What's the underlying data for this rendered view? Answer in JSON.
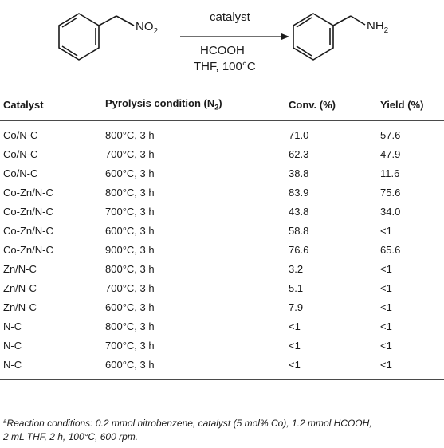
{
  "scheme": {
    "reactant_group": "NO",
    "reactant_group_sub": "2",
    "catalyst_label": "catalyst",
    "reagent_label": "HCOOH",
    "conditions_label": "THF, 100°C",
    "product_group": "NH",
    "product_group_sub": "2"
  },
  "table": {
    "headers": {
      "catalyst": "Catalyst",
      "pyrolysis": "Pyrolysis condition (N",
      "pyrolysis_sub": "2",
      "pyrolysis_close": ")",
      "conv": "Conv. (%)",
      "yield": "Yield (%)"
    },
    "rows": [
      {
        "catalyst": "Co/N-C",
        "condition": "800°C, 3 h",
        "conv": "71.0",
        "yield": "57.6"
      },
      {
        "catalyst": "Co/N-C",
        "condition": "700°C, 3 h",
        "conv": "62.3",
        "yield": "47.9"
      },
      {
        "catalyst": "Co/N-C",
        "condition": "600°C, 3 h",
        "conv": "38.8",
        "yield": "11.6"
      },
      {
        "catalyst": "Co-Zn/N-C",
        "condition": "800°C, 3 h",
        "conv": "83.9",
        "yield": "75.6"
      },
      {
        "catalyst": "Co-Zn/N-C",
        "condition": "700°C, 3 h",
        "conv": "43.8",
        "yield": "34.0"
      },
      {
        "catalyst": "Co-Zn/N-C",
        "condition": "600°C, 3 h",
        "conv": "58.8",
        "yield": "<1"
      },
      {
        "catalyst": "Co-Zn/N-C",
        "condition": "900°C, 3 h",
        "conv": "76.6",
        "yield": "65.6"
      },
      {
        "catalyst": "Zn/N-C",
        "condition": "800°C, 3 h",
        "conv": "3.2",
        "yield": "<1"
      },
      {
        "catalyst": "Zn/N-C",
        "condition": "700°C, 3 h",
        "conv": "5.1",
        "yield": "<1"
      },
      {
        "catalyst": "Zn/N-C",
        "condition": "600°C, 3 h",
        "conv": "7.9",
        "yield": "<1"
      },
      {
        "catalyst": "N-C",
        "condition": "800°C, 3 h",
        "conv": "<1",
        "yield": "<1"
      },
      {
        "catalyst": "N-C",
        "condition": "700°C, 3 h",
        "conv": "<1",
        "yield": "<1"
      },
      {
        "catalyst": "N-C",
        "condition": "600°C, 3 h",
        "conv": "<1",
        "yield": "<1"
      }
    ]
  },
  "footnote": {
    "marker": "a",
    "line1": "Reaction conditions: 0.2 mmol nitrobenzene, catalyst (5 mol% Co), 1.2 mmol HCOOH,",
    "line2": "2 mL THF, 2 h, 100°C, 600 rpm."
  }
}
